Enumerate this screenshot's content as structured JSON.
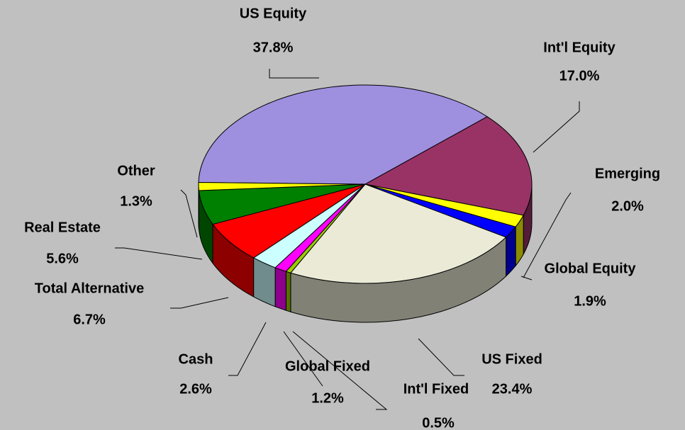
{
  "chart_data": {
    "type": "pie3d",
    "categories": [
      "US Equity",
      "Int'l Equity",
      "Emerging",
      "Global Equity",
      "US Fixed",
      "Int'l Fixed",
      "Global Fixed",
      "Cash",
      "Total Alternative",
      "Real Estate",
      "Other"
    ],
    "values": [
      37.8,
      17.0,
      2.0,
      1.9,
      23.4,
      0.5,
      1.2,
      2.6,
      6.7,
      5.6,
      1.3
    ],
    "value_labels": [
      "37.8%",
      "17.0%",
      "2.0%",
      "1.9%",
      "23.4%",
      "0.5%",
      "1.2%",
      "2.6%",
      "6.7%",
      "5.6%",
      "1.3%"
    ],
    "colors": [
      "#9f8fdf",
      "#993366",
      "#ffff00",
      "#0000ff",
      "#eaead6",
      "#99cc00",
      "#ff00ff",
      "#ccffff",
      "#ff0000",
      "#008000",
      "#ffff00"
    ]
  }
}
